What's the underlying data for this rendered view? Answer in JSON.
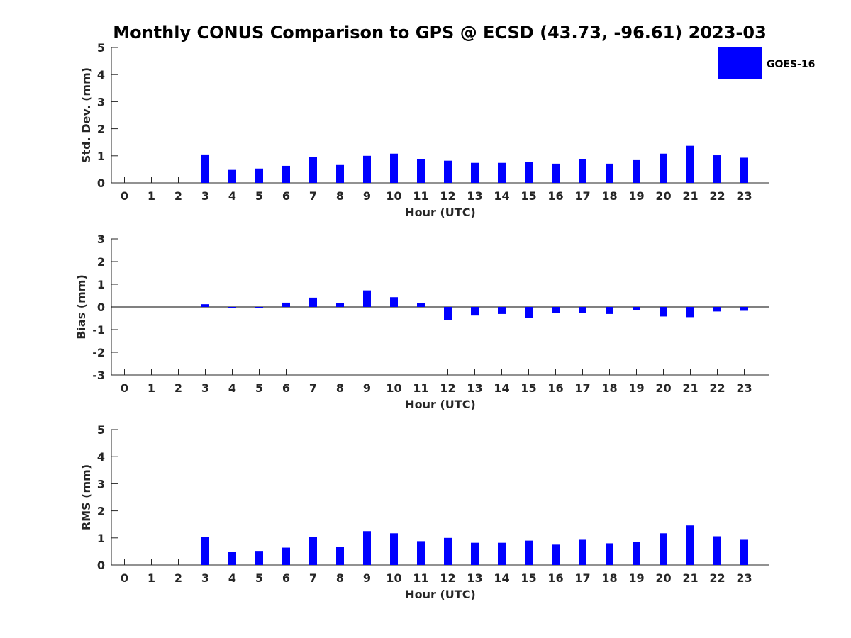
{
  "title": "Monthly CONUS Comparison to GPS @ ECSD (43.73, -96.61) 2023-03",
  "legend": {
    "label": "GOES-16",
    "color": "#0000ff",
    "placement": "top-right"
  },
  "chart_data": [
    {
      "type": "bar",
      "ylabel": "Std. Dev. (mm)",
      "xlabel": "Hour (UTC)",
      "ylim": [
        0,
        5
      ],
      "yticks": [
        0,
        1,
        2,
        3,
        4,
        5
      ],
      "categories": [
        "0",
        "1",
        "2",
        "3",
        "4",
        "5",
        "6",
        "7",
        "8",
        "9",
        "10",
        "11",
        "12",
        "13",
        "14",
        "15",
        "16",
        "17",
        "18",
        "19",
        "20",
        "21",
        "22",
        "23"
      ],
      "series": [
        {
          "name": "GOES-16",
          "color": "#0000ff",
          "values": [
            null,
            null,
            null,
            1.05,
            0.48,
            0.53,
            0.63,
            0.95,
            0.66,
            1.0,
            1.08,
            0.87,
            0.82,
            0.74,
            0.74,
            0.77,
            0.71,
            0.87,
            0.71,
            0.84,
            1.08,
            1.37,
            1.02,
            0.93
          ]
        }
      ]
    },
    {
      "type": "bar",
      "ylabel": "Bias (mm)",
      "xlabel": "Hour (UTC)",
      "ylim": [
        -3,
        3
      ],
      "yticks": [
        -3,
        -2,
        -1,
        0,
        1,
        2,
        3
      ],
      "categories": [
        "0",
        "1",
        "2",
        "3",
        "4",
        "5",
        "6",
        "7",
        "8",
        "9",
        "10",
        "11",
        "12",
        "13",
        "14",
        "15",
        "16",
        "17",
        "18",
        "19",
        "20",
        "21",
        "22",
        "23"
      ],
      "series": [
        {
          "name": "GOES-16",
          "color": "#0000ff",
          "values": [
            null,
            null,
            null,
            0.12,
            -0.05,
            -0.02,
            0.19,
            0.41,
            0.16,
            0.73,
            0.43,
            0.18,
            -0.57,
            -0.38,
            -0.31,
            -0.47,
            -0.25,
            -0.28,
            -0.31,
            -0.14,
            -0.42,
            -0.45,
            -0.2,
            -0.17
          ]
        }
      ]
    },
    {
      "type": "bar",
      "ylabel": "RMS (mm)",
      "xlabel": "Hour (UTC)",
      "ylim": [
        0,
        5
      ],
      "yticks": [
        0,
        1,
        2,
        3,
        4,
        5
      ],
      "categories": [
        "0",
        "1",
        "2",
        "3",
        "4",
        "5",
        "6",
        "7",
        "8",
        "9",
        "10",
        "11",
        "12",
        "13",
        "14",
        "15",
        "16",
        "17",
        "18",
        "19",
        "20",
        "21",
        "22",
        "23"
      ],
      "series": [
        {
          "name": "GOES-16",
          "color": "#0000ff",
          "values": [
            null,
            null,
            null,
            1.03,
            0.48,
            0.52,
            0.64,
            1.03,
            0.67,
            1.25,
            1.17,
            0.88,
            1.0,
            0.82,
            0.82,
            0.9,
            0.75,
            0.93,
            0.8,
            0.85,
            1.17,
            1.46,
            1.06,
            0.93
          ]
        }
      ]
    }
  ]
}
